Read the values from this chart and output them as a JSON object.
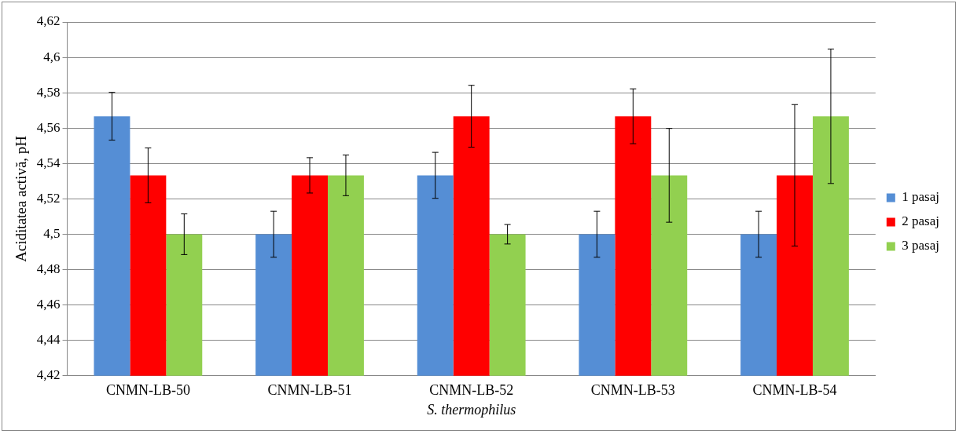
{
  "chart_data": {
    "type": "bar",
    "xlabel": "S. thermophilus",
    "ylabel": "Aciditatea activă, pH",
    "categories": [
      "CNMN-LB-50",
      "CNMN-LB-51",
      "CNMN-LB-52",
      "CNMN-LB-53",
      "CNMN-LB-54"
    ],
    "series": [
      {
        "name": "1 pasaj",
        "color": "#558ed5",
        "values": [
          4.5667,
          4.5,
          4.5333,
          4.5,
          4.5
        ],
        "errors": [
          0.0135,
          0.013,
          0.013,
          0.013,
          0.013
        ]
      },
      {
        "name": "2 pasaj",
        "color": "#ff0000",
        "values": [
          4.5333,
          4.5333,
          4.5667,
          4.5667,
          4.5333
        ],
        "errors": [
          0.0155,
          0.01,
          0.0175,
          0.0155,
          0.04
        ]
      },
      {
        "name": "3 pasaj",
        "color": "#92d050",
        "values": [
          4.5,
          4.5333,
          4.5,
          4.5333,
          4.5667
        ],
        "errors": [
          0.0115,
          0.0115,
          0.0055,
          0.0265,
          0.038
        ]
      }
    ],
    "ylim": [
      4.42,
      4.62
    ],
    "yticks": [
      {
        "value": 4.42,
        "label": "4,42"
      },
      {
        "value": 4.44,
        "label": "4,44"
      },
      {
        "value": 4.46,
        "label": "4,46"
      },
      {
        "value": 4.48,
        "label": "4,48"
      },
      {
        "value": 4.5,
        "label": "4,5"
      },
      {
        "value": 4.52,
        "label": "4,52"
      },
      {
        "value": 4.54,
        "label": "4,54"
      },
      {
        "value": 4.56,
        "label": "4,56"
      },
      {
        "value": 4.58,
        "label": "4,58"
      },
      {
        "value": 4.6,
        "label": "4,6"
      },
      {
        "value": 4.62,
        "label": "4,62"
      }
    ],
    "grid": "y",
    "legend": "right"
  }
}
